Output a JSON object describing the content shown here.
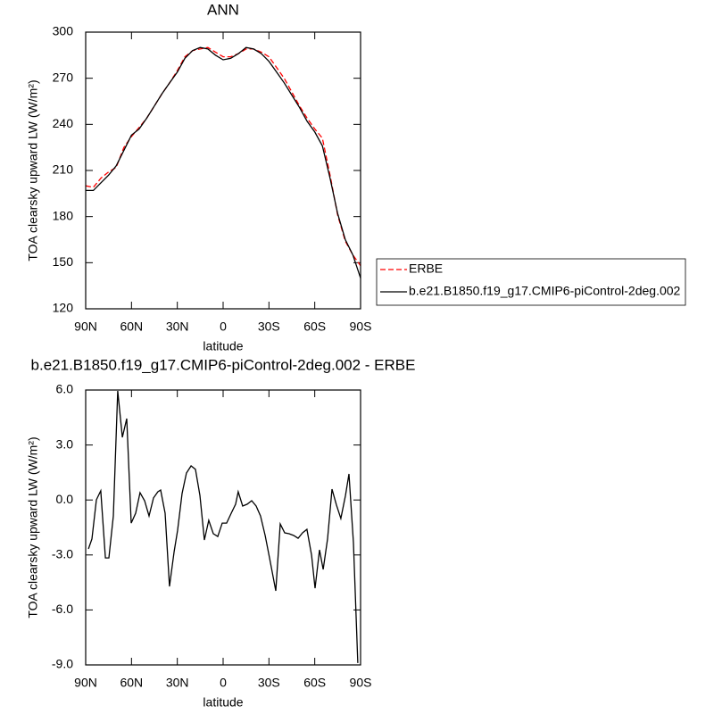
{
  "chart_data": [
    {
      "type": "line",
      "title": "ANN",
      "xlabel": "latitude",
      "ylabel": "TOA clearsky upward LW (W/m²)",
      "x": [
        90,
        85,
        80,
        75,
        70,
        65,
        60,
        55,
        50,
        45,
        40,
        35,
        30,
        25,
        20,
        15,
        10,
        5,
        0,
        -5,
        -10,
        -15,
        -20,
        -25,
        -30,
        -35,
        -40,
        -45,
        -50,
        -55,
        -60,
        -65,
        -70,
        -75,
        -80,
        -85,
        -90
      ],
      "series": [
        {
          "name": "ERBE",
          "color": "#ff0000",
          "linestyle": "dashed",
          "values": [
            200,
            199,
            205,
            209,
            212,
            225,
            232,
            238,
            244,
            252,
            260,
            267,
            275,
            284,
            288,
            289,
            290,
            287,
            284,
            284,
            286,
            289,
            289,
            287,
            284,
            277,
            270,
            261,
            252,
            244,
            237,
            231,
            207,
            181,
            164,
            155,
            148
          ]
        },
        {
          "name": "b.e21.B1850.f19_g17.CMIP6-piControl-2deg.002",
          "color": "#000000",
          "linestyle": "solid",
          "values": [
            197,
            197,
            202,
            207,
            213,
            223,
            233,
            237,
            244,
            252,
            260,
            267,
            274,
            283,
            288,
            290,
            289,
            285,
            282,
            283,
            286,
            290,
            289,
            286,
            281,
            274,
            267,
            259,
            251,
            242,
            235,
            226,
            205,
            182,
            165,
            155,
            140
          ]
        }
      ],
      "xlim": [
        90,
        -90
      ],
      "xticks": [
        {
          "value": 90,
          "label": "90N"
        },
        {
          "value": 60,
          "label": "60N"
        },
        {
          "value": 30,
          "label": "30N"
        },
        0,
        {
          "value": -30,
          "label": "30S"
        },
        {
          "value": -60,
          "label": "60S"
        },
        {
          "value": -90,
          "label": "90S"
        }
      ],
      "ylim": [
        120,
        300
      ],
      "yticks": [
        120,
        150,
        180,
        210,
        240,
        270,
        300
      ],
      "legend": "right"
    },
    {
      "type": "line",
      "title": "b.e21.B1850.f19_g17.CMIP6-piControl-2deg.002 - ERBE",
      "xlabel": "latitude",
      "ylabel": "TOA clearsky upward LW (W/m²)",
      "x": [
        88.2,
        85.9,
        83.0,
        80.1,
        77.1,
        74.8,
        71.9,
        69.0,
        66.0,
        63.1,
        60.2,
        57.3,
        54.4,
        51.4,
        48.5,
        45.6,
        42.7,
        40.9,
        38.0,
        35.1,
        32.1,
        29.8,
        26.9,
        24.0,
        21.0,
        18.1,
        15.2,
        12.3,
        9.4,
        6.4,
        3.5,
        0.6,
        -2.3,
        -5.3,
        -8.2,
        -9.9,
        -12.8,
        -15.8,
        -18.7,
        -21.6,
        -24.5,
        -27.5,
        -30.4,
        -34.5,
        -37.4,
        -40.3,
        -43.2,
        -46.2,
        -49.1,
        -52.0,
        -54.9,
        -57.9,
        -60.2,
        -63.1,
        -65.5,
        -68.4,
        -71.3,
        -74.2,
        -77.1,
        -80.1,
        -82.4,
        -85.3,
        -88.2
      ],
      "series": [
        {
          "color": "#000000",
          "linestyle": "solid",
          "values": [
            -2.67,
            -2.13,
            0.01,
            0.5,
            -3.16,
            -3.16,
            -0.87,
            5.95,
            3.42,
            4.44,
            -1.26,
            -0.72,
            0.4,
            -0.04,
            -0.87,
            0.11,
            0.45,
            0.54,
            -0.72,
            -4.72,
            -2.82,
            -1.65,
            0.35,
            1.47,
            1.86,
            1.67,
            0.25,
            -2.18,
            -1.11,
            -1.84,
            -1.99,
            -1.26,
            -1.26,
            -0.72,
            -0.23,
            0.45,
            -0.33,
            -0.23,
            -0.04,
            -0.33,
            -0.87,
            -1.94,
            -3.16,
            -4.96,
            -1.31,
            -1.79,
            -1.84,
            -1.94,
            -2.09,
            -1.79,
            -1.6,
            -3.01,
            -4.81,
            -2.72,
            -3.79,
            -2.13,
            0.59,
            -0.28,
            -1.01,
            0.25,
            1.42,
            -2.33,
            -8.9
          ]
        }
      ],
      "xlim": [
        90,
        -90
      ],
      "xticks": [
        {
          "value": 90,
          "label": "90N"
        },
        {
          "value": 60,
          "label": "60N"
        },
        {
          "value": 30,
          "label": "30N"
        },
        0,
        {
          "value": -30,
          "label": "30S"
        },
        {
          "value": -60,
          "label": "60S"
        },
        {
          "value": -90,
          "label": "90S"
        }
      ],
      "ylim": [
        -9,
        6
      ],
      "yticks": [
        {
          "value": -9,
          "label": "-9.0"
        },
        {
          "value": -6,
          "label": "-6.0"
        },
        {
          "value": -3,
          "label": "-3.0"
        },
        {
          "value": 0,
          "label": "0.0"
        },
        {
          "value": 3,
          "label": "3.0"
        },
        {
          "value": 6,
          "label": "6.0"
        }
      ]
    }
  ]
}
